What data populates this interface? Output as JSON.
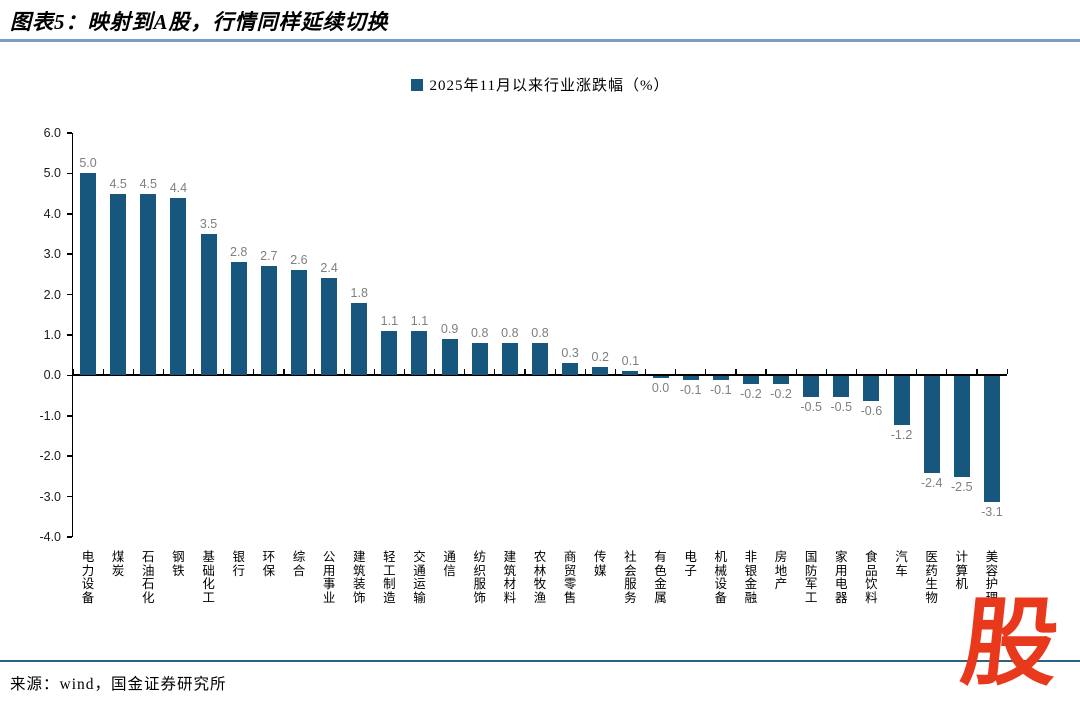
{
  "header": {
    "title": "图表5：映射到A股，行情同样延续切换"
  },
  "footer": {
    "source": "来源：wind，国金证券研究所",
    "logo_text": "股"
  },
  "colors": {
    "bar": "#17567d",
    "value_label": "#7f7f7f",
    "title_rule": "#7b9fc2",
    "footer_rule": "#2d6186",
    "logo": "#e8391c",
    "axis": "#000000"
  },
  "chart_data": {
    "type": "bar",
    "title": "2025年11月以来行业涨跌幅（%）",
    "legend": [
      "2025年11月以来行业涨跌幅（%）"
    ],
    "legend_position": "top-center",
    "grid": false,
    "xlabel": "",
    "ylabel": "",
    "ylim": [
      -4.0,
      6.0
    ],
    "ytick_step": 1.0,
    "categories": [
      "电力设备",
      "煤炭",
      "石油石化",
      "钢铁",
      "基础化工",
      "银行",
      "环保",
      "综合",
      "公用事业",
      "建筑装饰",
      "轻工制造",
      "交通运输",
      "通信",
      "纺织服饰",
      "建筑材料",
      "农林牧渔",
      "商贸零售",
      "传媒",
      "社会服务",
      "有色金属",
      "电子",
      "机械设备",
      "非银金融",
      "房地产",
      "国防军工",
      "家用电器",
      "食品饮料",
      "汽车",
      "医药生物",
      "计算机",
      "美容护理"
    ],
    "values": [
      5.0,
      4.5,
      4.5,
      4.4,
      3.5,
      2.8,
      2.7,
      2.6,
      2.4,
      1.8,
      1.1,
      1.1,
      0.9,
      0.8,
      0.8,
      0.8,
      0.3,
      0.2,
      0.1,
      0.0,
      -0.1,
      -0.1,
      -0.2,
      -0.2,
      -0.5,
      -0.5,
      -0.6,
      -1.2,
      -2.4,
      -2.5,
      -3.1
    ]
  }
}
